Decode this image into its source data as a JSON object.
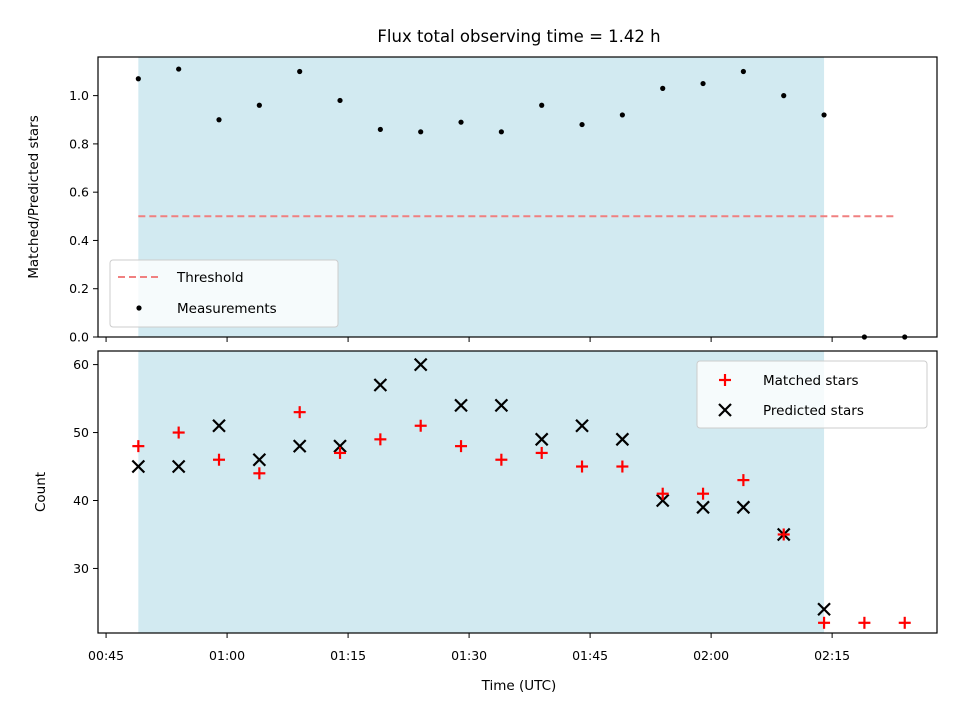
{
  "chart_data": [
    {
      "type": "scatter",
      "title": "Flux total observing time = 1.42 h",
      "xlabel": "",
      "ylabel": "Matched/Predicted stars",
      "ylim": [
        0.0,
        1.16
      ],
      "yticks": [
        "0.0",
        "0.2",
        "0.4",
        "0.6",
        "0.8",
        "1.0"
      ],
      "legend_position": "lower-left",
      "shaded_interval": {
        "start": "00:49",
        "end": "02:14",
        "color": "#add8e6"
      },
      "series": [
        {
          "name": "Threshold",
          "style": "dashed-line",
          "color": "#f08080",
          "x": [
            "00:49",
            "02:23"
          ],
          "y": [
            0.5,
            0.5
          ]
        },
        {
          "name": "Measurements",
          "style": "dot",
          "color": "#000000",
          "x": [
            "00:49",
            "00:54",
            "00:59",
            "01:04",
            "01:09",
            "01:14",
            "01:19",
            "01:24",
            "01:29",
            "01:34",
            "01:39",
            "01:44",
            "01:49",
            "01:54",
            "01:59",
            "02:04",
            "02:09",
            "02:14",
            "02:19",
            "02:24"
          ],
          "y": [
            1.07,
            1.11,
            0.9,
            0.96,
            1.1,
            0.98,
            0.86,
            0.85,
            0.89,
            0.85,
            0.96,
            0.88,
            0.92,
            1.03,
            1.05,
            1.1,
            1.0,
            0.92,
            0.0,
            0.0
          ]
        }
      ]
    },
    {
      "type": "scatter",
      "title": "",
      "xlabel": "Time (UTC)",
      "ylabel": "Count",
      "ylim": [
        20.5,
        62
      ],
      "yticks": [
        "30",
        "40",
        "50",
        "60"
      ],
      "xlim": [
        "00:44",
        "02:28"
      ],
      "xticks": [
        "00:45",
        "01:00",
        "01:15",
        "01:30",
        "01:45",
        "02:00",
        "02:15"
      ],
      "legend_position": "upper-right",
      "shaded_interval": {
        "start": "00:49",
        "end": "02:14",
        "color": "#add8e6"
      },
      "series": [
        {
          "name": "Matched stars",
          "marker": "+",
          "color": "#ff0000",
          "x": [
            "00:49",
            "00:54",
            "00:59",
            "01:04",
            "01:09",
            "01:14",
            "01:19",
            "01:24",
            "01:29",
            "01:34",
            "01:39",
            "01:44",
            "01:49",
            "01:54",
            "01:59",
            "02:04",
            "02:09",
            "02:14",
            "02:19",
            "02:24"
          ],
          "y": [
            48,
            50,
            46,
            44,
            53,
            47,
            49,
            51,
            48,
            46,
            47,
            45,
            45,
            41,
            41,
            43,
            35,
            22,
            22,
            22
          ]
        },
        {
          "name": "Predicted stars",
          "marker": "x",
          "color": "#000000",
          "x": [
            "00:49",
            "00:54",
            "00:59",
            "01:04",
            "01:09",
            "01:14",
            "01:19",
            "01:24",
            "01:29",
            "01:34",
            "01:39",
            "01:44",
            "01:49",
            "01:54",
            "01:59",
            "02:04",
            "02:09",
            "02:14"
          ],
          "y": [
            45,
            45,
            51,
            46,
            48,
            48,
            57,
            60,
            54,
            54,
            49,
            51,
            49,
            40,
            39,
            39,
            35,
            24
          ]
        }
      ]
    }
  ]
}
